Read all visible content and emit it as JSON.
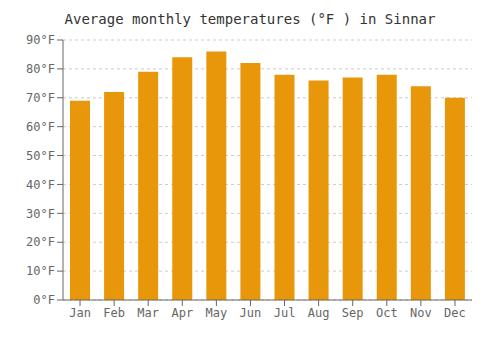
{
  "chart_data": {
    "type": "bar",
    "title": "Average monthly temperatures (°F ) in Sinnar",
    "categories": [
      "Jan",
      "Feb",
      "Mar",
      "Apr",
      "May",
      "Jun",
      "Jul",
      "Aug",
      "Sep",
      "Oct",
      "Nov",
      "Dec"
    ],
    "values": [
      69,
      72,
      79,
      84,
      86,
      82,
      78,
      76,
      77,
      78,
      74,
      70
    ],
    "color": "#E8970A",
    "ylim": [
      0,
      90
    ],
    "yticks": [
      {
        "value": 0,
        "label": "0°F"
      },
      {
        "value": 10,
        "label": "10°F"
      },
      {
        "value": 20,
        "label": "20°F"
      },
      {
        "value": 30,
        "label": "30°F"
      },
      {
        "value": 40,
        "label": "40°F"
      },
      {
        "value": 50,
        "label": "50°F"
      },
      {
        "value": 60,
        "label": "60°F"
      },
      {
        "value": 70,
        "label": "70°F"
      },
      {
        "value": 80,
        "label": "80°F"
      },
      {
        "value": 90,
        "label": "90°F"
      }
    ],
    "grid": true
  }
}
